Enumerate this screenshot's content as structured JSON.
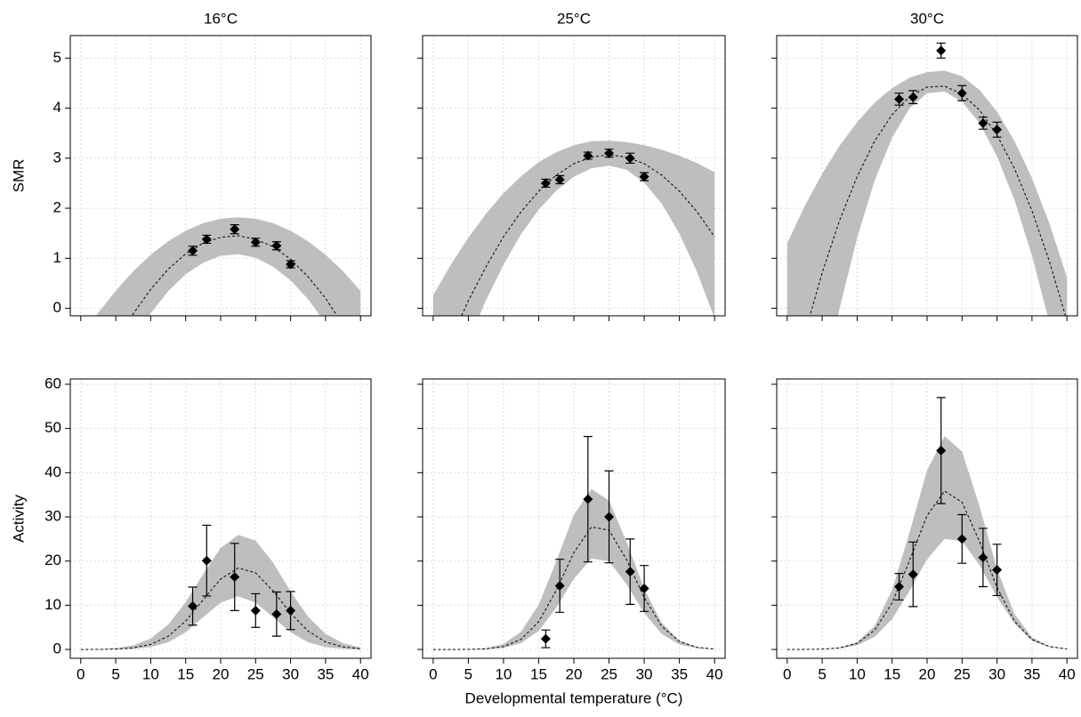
{
  "chart_data": [
    {
      "type": "scatter",
      "title": "16°C",
      "ylabel": "SMR",
      "x": [
        16,
        18,
        22,
        25,
        28,
        30
      ],
      "values": [
        1.15,
        1.38,
        1.58,
        1.32,
        1.25,
        0.88
      ],
      "yerr": [
        0.09,
        0.08,
        0.09,
        0.08,
        0.08,
        0.07
      ],
      "curve_x": [
        0,
        2.5,
        5,
        7.5,
        10,
        12.5,
        15,
        17.5,
        20,
        22.5,
        25,
        27.5,
        30,
        32.5,
        35,
        37.5,
        40
      ],
      "fit": [
        -2.13,
        -1.36,
        -0.69,
        -0.11,
        0.38,
        0.78,
        1.09,
        1.3,
        1.42,
        1.45,
        1.38,
        1.23,
        0.98,
        0.63,
        0.2,
        -0.33,
        -0.95
      ],
      "band_upper": [
        -0.6,
        -0.09,
        0.35,
        0.74,
        1.07,
        1.34,
        1.55,
        1.7,
        1.79,
        1.82,
        1.79,
        1.7,
        1.55,
        1.34,
        1.07,
        0.74,
        0.35
      ],
      "band_lower": [
        -2.87,
        -2.03,
        -1.28,
        -0.64,
        -0.1,
        0.34,
        0.68,
        0.91,
        1.05,
        1.08,
        1.01,
        0.83,
        0.56,
        0.18,
        -0.3,
        -0.88,
        -1.57
      ],
      "xlim": [
        -1.5,
        41.5
      ],
      "ylim": [
        -0.15,
        5.45
      ],
      "xticks": [
        0,
        5,
        10,
        15,
        20,
        25,
        30,
        35,
        40
      ],
      "yticks": [
        0,
        1,
        2,
        3,
        4,
        5
      ],
      "xtick_labels": false,
      "ytick_labels": true,
      "grid": true,
      "color": "#000000",
      "band_color": "#bebebe"
    },
    {
      "type": "scatter",
      "title": "25°C",
      "x": [
        16,
        18,
        22,
        25,
        28,
        30
      ],
      "values": [
        2.5,
        2.57,
        3.05,
        3.1,
        3.0,
        2.63
      ],
      "yerr": [
        0.08,
        0.08,
        0.07,
        0.08,
        0.1,
        0.08
      ],
      "curve_x": [
        0,
        2.5,
        5,
        7.5,
        10,
        12.5,
        15,
        17.5,
        20,
        22.5,
        25,
        27.5,
        30,
        32.5,
        35,
        37.5,
        40
      ],
      "fit": [
        -1.5,
        -0.63,
        0.15,
        0.83,
        1.43,
        1.93,
        2.34,
        2.66,
        2.89,
        3.02,
        3.07,
        3.02,
        2.89,
        2.66,
        2.34,
        1.93,
        1.43
      ],
      "band_upper": [
        0.26,
        0.87,
        1.41,
        1.89,
        2.3,
        2.64,
        2.92,
        3.12,
        3.26,
        3.34,
        3.35,
        3.32,
        3.26,
        3.17,
        3.05,
        2.9,
        2.72
      ],
      "band_lower": [
        -2.65,
        -1.6,
        -0.67,
        0.16,
        0.87,
        1.48,
        1.97,
        2.35,
        2.63,
        2.8,
        2.85,
        2.77,
        2.51,
        2.09,
        1.49,
        0.73,
        -0.2
      ],
      "xlim": [
        -1.5,
        41.5
      ],
      "ylim": [
        -0.15,
        5.45
      ],
      "xticks": [
        0,
        5,
        10,
        15,
        20,
        25,
        30,
        35,
        40
      ],
      "yticks": [
        0,
        1,
        2,
        3,
        4,
        5
      ],
      "xtick_labels": false,
      "ytick_labels": false,
      "grid": true,
      "color": "#000000",
      "band_color": "#bebebe"
    },
    {
      "type": "scatter",
      "title": "30°C",
      "x": [
        16,
        18,
        22,
        25,
        28,
        30
      ],
      "values": [
        4.18,
        4.22,
        5.15,
        4.3,
        3.7,
        3.57
      ],
      "yerr": [
        0.12,
        0.13,
        0.15,
        0.15,
        0.12,
        0.15
      ],
      "curve_x": [
        0,
        2.5,
        5,
        7.5,
        10,
        12.5,
        15,
        17.5,
        20,
        22.5,
        25,
        27.5,
        30,
        32.5,
        35,
        37.5,
        40
      ],
      "fit": [
        -1.9,
        -0.51,
        0.71,
        1.76,
        2.63,
        3.34,
        3.87,
        4.23,
        4.42,
        4.44,
        4.28,
        3.96,
        3.46,
        2.79,
        1.95,
        0.93,
        -0.25
      ],
      "band_upper": [
        1.3,
        2.04,
        2.69,
        3.25,
        3.72,
        4.11,
        4.4,
        4.61,
        4.72,
        4.75,
        4.64,
        4.36,
        3.93,
        3.34,
        2.6,
        1.69,
        0.62
      ],
      "band_lower": [
        -5.91,
        -3.66,
        -1.69,
        0,
        1.41,
        2.55,
        3.41,
        4.0,
        4.3,
        4.33,
        4.13,
        3.7,
        3.04,
        2.16,
        1.05,
        -0.29,
        -1.85
      ],
      "xlim": [
        -1.5,
        41.5
      ],
      "ylim": [
        -0.15,
        5.45
      ],
      "xticks": [
        0,
        5,
        10,
        15,
        20,
        25,
        30,
        35,
        40
      ],
      "yticks": [
        0,
        1,
        2,
        3,
        4,
        5
      ],
      "xtick_labels": false,
      "ytick_labels": false,
      "grid": true,
      "color": "#000000",
      "band_color": "#bebebe"
    },
    {
      "type": "scatter",
      "ylabel": "Activity",
      "x": [
        16,
        18,
        22,
        25,
        28,
        30
      ],
      "values": [
        9.8,
        20.1,
        16.4,
        8.8,
        8.0,
        8.8
      ],
      "yerr": [
        4.3,
        8,
        7.6,
        3.8,
        5,
        4.3
      ],
      "curve_x": [
        0,
        2.5,
        5,
        7.5,
        10,
        12.5,
        15,
        17.5,
        20,
        22.5,
        25,
        27.5,
        30,
        32.5,
        35,
        37.5,
        40
      ],
      "fit": [
        0.0,
        0.02,
        0.09,
        0.35,
        1.13,
        2.99,
        6.42,
        11.22,
        15.94,
        18.42,
        17.32,
        13.24,
        8.23,
        4.16,
        1.71,
        0.57,
        0.16
      ],
      "band_upper": [
        0.02,
        0.08,
        0.29,
        0.92,
        2.49,
        5.63,
        10.69,
        17.08,
        22.95,
        25.91,
        24.6,
        19.63,
        13.16,
        7.42,
        3.52,
        1.4,
        0.47
      ],
      "band_lower": [
        0.0,
        0.0,
        0.03,
        0.13,
        0.53,
        1.62,
        3.9,
        7.28,
        10.59,
        12.0,
        10.59,
        7.28,
        3.9,
        1.62,
        0.53,
        0.13,
        0.0
      ],
      "xlim": [
        -1.5,
        41.5
      ],
      "ylim": [
        -2,
        61.2
      ],
      "xticks": [
        0,
        5,
        10,
        15,
        20,
        25,
        30,
        35,
        40
      ],
      "yticks": [
        0,
        10,
        20,
        30,
        40,
        50,
        60
      ],
      "xtick_labels": true,
      "ytick_labels": true,
      "grid": true,
      "color": "#000000",
      "band_color": "#bebebe"
    },
    {
      "type": "scatter",
      "xlabel": "Developmental temperature (°C)",
      "x": [
        16,
        18,
        22,
        25,
        28,
        30
      ],
      "values": [
        2.4,
        14.4,
        34.0,
        30.0,
        17.6,
        13.8
      ],
      "yerr": [
        2,
        6,
        14.2,
        10.4,
        7.4,
        5.2
      ],
      "curve_x": [
        0,
        2.5,
        5,
        7.5,
        10,
        12.5,
        15,
        17.5,
        20,
        22.5,
        25,
        27.5,
        30,
        32.5,
        35,
        37.5,
        40
      ],
      "fit": [
        0.0,
        0.0,
        0.02,
        0.14,
        0.63,
        2.28,
        6.28,
        13.36,
        21.92,
        27.71,
        27.0,
        20.28,
        11.73,
        5.24,
        1.8,
        0.48,
        0.1
      ],
      "band_upper": [
        0.0,
        0.01,
        0.06,
        0.3,
        1.24,
        4.02,
        10.15,
        19.93,
        30.49,
        36.32,
        33.69,
        24.34,
        13.69,
        6.0,
        2.05,
        0.54,
        0.11
      ],
      "band_lower": [
        0.0,
        0.0,
        0.01,
        0.07,
        0.37,
        1.43,
        4.22,
        9.44,
        16.0,
        20.54,
        19.98,
        14.71,
        8.21,
        3.47,
        1.11,
        0.27,
        0.05
      ],
      "xlim": [
        -1.5,
        41.5
      ],
      "ylim": [
        -2,
        61.2
      ],
      "xticks": [
        0,
        5,
        10,
        15,
        20,
        25,
        30,
        35,
        40
      ],
      "yticks": [
        0,
        10,
        20,
        30,
        40,
        50,
        60
      ],
      "xtick_labels": true,
      "ytick_labels": false,
      "grid": true,
      "color": "#000000",
      "band_color": "#bebebe"
    },
    {
      "type": "scatter",
      "x": [
        16,
        18,
        22,
        25,
        28,
        30
      ],
      "values": [
        14.2,
        17.0,
        45.0,
        25.0,
        20.8,
        18.0
      ],
      "yerr": [
        3,
        7.3,
        12,
        5.5,
        6.6,
        5.8
      ],
      "curve_x": [
        0,
        2.5,
        5,
        7.5,
        10,
        12.5,
        15,
        17.5,
        20,
        22.5,
        25,
        27.5,
        30,
        32.5,
        35,
        37.5,
        40
      ],
      "fit": [
        0.0,
        0.01,
        0.07,
        0.36,
        1.4,
        4.32,
        10.51,
        20.12,
        30.28,
        35.83,
        33.33,
        24.39,
        14.03,
        6.35,
        2.26,
        0.63,
        0.14
      ],
      "band_upper": [
        0.0,
        0.01,
        0.07,
        0.4,
        1.65,
        5.34,
        13.48,
        26.48,
        40.5,
        48.26,
        44.77,
        32.35,
        18.19,
        7.98,
        2.72,
        0.72,
        0.15
      ],
      "band_lower": [
        0.0,
        0.01,
        0.05,
        0.24,
        0.93,
        2.83,
        6.85,
        13.25,
        20.41,
        25.04,
        24.48,
        19.07,
        11.83,
        5.85,
        1.9,
        0.5,
        0.1
      ],
      "xlim": [
        -1.5,
        41.5
      ],
      "ylim": [
        -2,
        61.2
      ],
      "xticks": [
        0,
        5,
        10,
        15,
        20,
        25,
        30,
        35,
        40
      ],
      "yticks": [
        0,
        10,
        20,
        30,
        40,
        50,
        60
      ],
      "xtick_labels": true,
      "ytick_labels": false,
      "grid": true,
      "color": "#000000",
      "band_color": "#bebebe"
    }
  ]
}
